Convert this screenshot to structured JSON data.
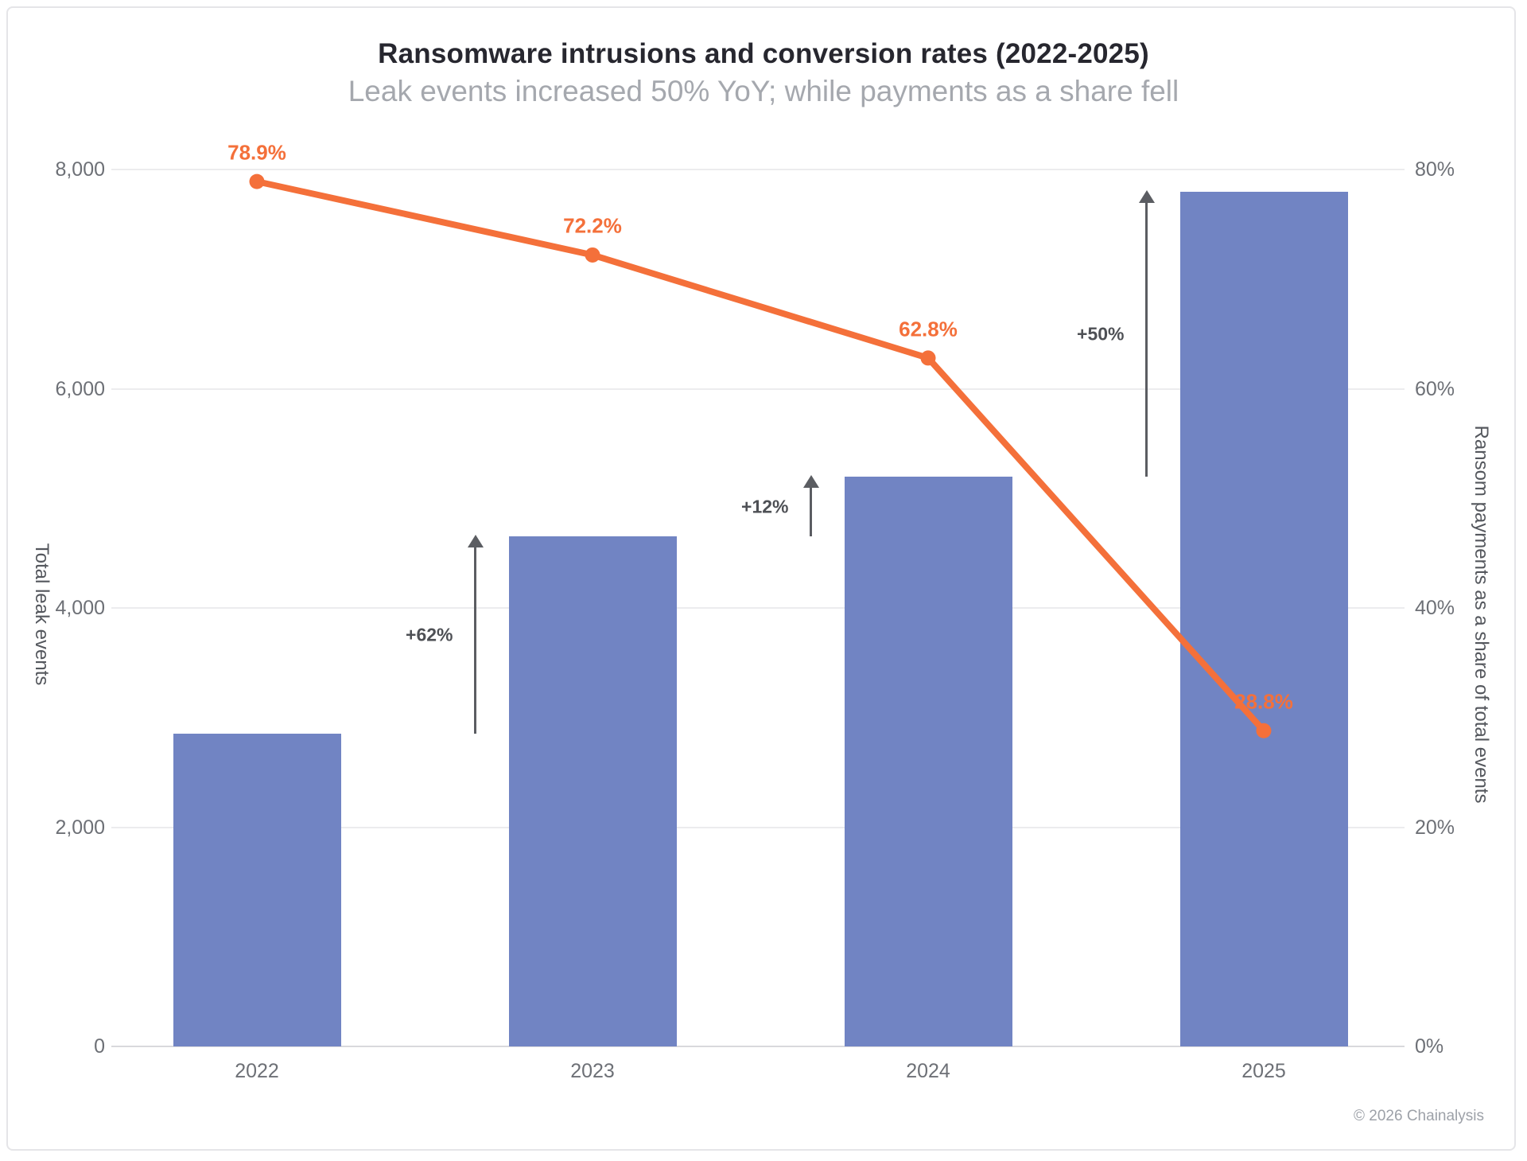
{
  "card": {
    "title": "Ransomware intrusions and conversion rates (2022-2025)",
    "subtitle": "Leak events increased 50% YoY; while payments as a share fell",
    "copyright": "© 2026 Chainalysis"
  },
  "colors": {
    "bar": "#7184c3",
    "line": "#f4703a",
    "arrow": "#5b5d62",
    "grid": "#ececee",
    "baseline": "#d9d9dc",
    "axis_text": "#6d7076"
  },
  "chart_data": {
    "type": "combo-bar-line",
    "categories": [
      "2022",
      "2023",
      "2024",
      "2025"
    ],
    "series": [
      {
        "name": "Total leak events",
        "type": "bar",
        "axis": "left",
        "values": [
          2850,
          4650,
          5200,
          7800
        ],
        "color": "#7184c3"
      },
      {
        "name": "Ransom payments as a share of total events",
        "type": "line",
        "axis": "right",
        "values": [
          78.9,
          72.2,
          62.8,
          28.8
        ],
        "labels": [
          "78.9%",
          "72.2%",
          "62.8%",
          "28.8%"
        ],
        "color": "#f4703a"
      }
    ],
    "left_axis": {
      "title": "Total leak events",
      "max": 8000,
      "tick_values": [
        0,
        2000,
        4000,
        6000,
        8000
      ],
      "ticks": [
        "0",
        "2,000",
        "4,000",
        "6,000",
        "8,000"
      ]
    },
    "right_axis": {
      "title": "Ransom payments as a share of total events",
      "max": 80,
      "tick_values": [
        0,
        20,
        40,
        60,
        80
      ],
      "ticks": [
        "0%",
        "20%",
        "40%",
        "60%",
        "80%"
      ]
    },
    "annotations": [
      {
        "label": "+62%",
        "from_category": "2022",
        "to_category": "2023"
      },
      {
        "label": "+12%",
        "from_category": "2023",
        "to_category": "2024"
      },
      {
        "label": "+50%",
        "from_category": "2024",
        "to_category": "2025"
      }
    ],
    "grid": true,
    "legend": "none"
  }
}
